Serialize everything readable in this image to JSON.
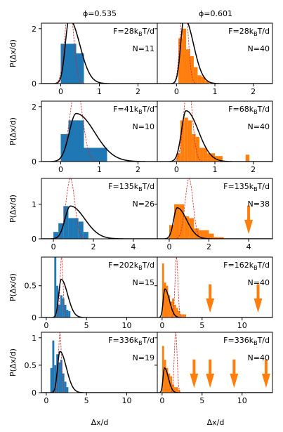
{
  "figure": {
    "column_titles": [
      "ϕ=0.535",
      "ϕ=0.601"
    ],
    "ylabel": "P(Δx/d)",
    "xlabel": "Δx/d"
  },
  "colors": {
    "left_hist": "#1f77b4",
    "right_hist": "#ff7f0e",
    "fit_curve": "#000000",
    "ref_curve": "#d62728",
    "arrow": "#ff7f0e"
  },
  "chart_data": [
    {
      "row": 0,
      "ylim": [
        0,
        2.2
      ],
      "yticks": [
        0,
        2
      ],
      "xlim": [
        -0.5,
        2.5
      ],
      "xticks": [
        0,
        1,
        2
      ],
      "left": {
        "force": "F=28k_BT/d",
        "n": "N=11",
        "bins": [
          [
            0,
            0.2,
            1.45
          ],
          [
            0.2,
            0.4,
            1.45
          ],
          [
            0.4,
            0.6,
            1.1
          ]
        ],
        "curve_peak": 0.22,
        "curve_width": 0.17,
        "curve_height": 2.35,
        "ref_peak": 0.22,
        "ref_width": 0.11,
        "ref_height": 3.0,
        "arrows": []
      },
      "right": {
        "force": "F=28k_BT/d",
        "n": "N=40",
        "bins": [
          [
            0.05,
            0.15,
            1.65
          ],
          [
            0.15,
            0.25,
            2.0
          ],
          [
            0.25,
            0.35,
            1.25
          ],
          [
            0.35,
            0.45,
            1.0
          ],
          [
            0.45,
            0.55,
            0.6
          ],
          [
            0.55,
            0.65,
            0.3
          ],
          [
            0.65,
            0.75,
            0.25
          ],
          [
            0.75,
            0.85,
            0.1
          ]
        ],
        "curve_peak": 0.2,
        "curve_width": 0.15,
        "curve_height": 2.4,
        "ref_peak": 0.2,
        "ref_width": 0.09,
        "ref_height": 3.5,
        "arrows": []
      }
    },
    {
      "row": 1,
      "ylim": [
        0,
        2.2
      ],
      "yticks": [
        0,
        2
      ],
      "xlim": [
        -0.5,
        2.5
      ],
      "xticks": [
        0,
        1,
        2
      ],
      "left": {
        "force": "F=41k_BT/d",
        "n": "N=10",
        "bins": [
          [
            0,
            0.2,
            1.0
          ],
          [
            0.2,
            0.4,
            1.5
          ],
          [
            0.4,
            0.6,
            1.5
          ],
          [
            0.6,
            0.8,
            0.5
          ],
          [
            0.8,
            1.2,
            0.5
          ]
        ],
        "curve_peak": 0.4,
        "curve_width": 0.3,
        "curve_height": 1.75,
        "ref_peak": 0.4,
        "ref_width": 0.16,
        "ref_height": 2.8,
        "arrows": []
      },
      "right": {
        "force": "F=68k_BT/d",
        "n": "N=40",
        "bins": [
          [
            0,
            0.1,
            0.3
          ],
          [
            0.1,
            0.2,
            1.5
          ],
          [
            0.2,
            0.3,
            1.6
          ],
          [
            0.3,
            0.4,
            1.5
          ],
          [
            0.4,
            0.5,
            1.0
          ],
          [
            0.5,
            0.6,
            0.9
          ],
          [
            0.6,
            0.7,
            0.5
          ],
          [
            0.7,
            0.8,
            0.5
          ],
          [
            0.8,
            0.9,
            0.3
          ],
          [
            0.9,
            1.0,
            0.3
          ],
          [
            1.0,
            1.1,
            0.2
          ],
          [
            1.1,
            1.2,
            0.2
          ],
          [
            1.8,
            1.9,
            0.25
          ]
        ],
        "curve_peak": 0.25,
        "curve_width": 0.2,
        "curve_height": 1.85,
        "ref_peak": 0.3,
        "ref_width": 0.11,
        "ref_height": 2.9,
        "arrows": []
      }
    },
    {
      "row": 2,
      "ylim": [
        0,
        1.75
      ],
      "yticks": [
        0,
        1
      ],
      "xlim": [
        -0.6,
        5.2
      ],
      "xticks": [
        0,
        2,
        4
      ],
      "left": {
        "force": "F=135k_BT/d",
        "n": "N=26",
        "bins": [
          [
            0,
            0.25,
            0.2
          ],
          [
            0.25,
            0.5,
            0.45
          ],
          [
            0.5,
            0.75,
            0.95
          ],
          [
            0.75,
            1.0,
            0.6
          ],
          [
            1.0,
            1.25,
            0.6
          ],
          [
            1.25,
            1.5,
            0.5
          ],
          [
            1.5,
            1.75,
            0.2
          ]
        ],
        "curve_peak": 0.85,
        "curve_width": 0.45,
        "curve_height": 0.95,
        "ref_peak": 0.85,
        "ref_width": 0.22,
        "ref_height": 1.75,
        "arrows": []
      },
      "right": {
        "force": "F=135k_BT/d",
        "n": "N=38",
        "bins": [
          [
            0,
            0.25,
            0.4
          ],
          [
            0.25,
            0.5,
            1.0
          ],
          [
            0.5,
            0.75,
            1.0
          ],
          [
            0.75,
            1.0,
            0.65
          ],
          [
            1.0,
            1.25,
            0.6
          ],
          [
            1.25,
            1.5,
            0.3
          ],
          [
            1.5,
            1.75,
            0.25
          ],
          [
            1.75,
            2.0,
            0.25
          ],
          [
            2.0,
            2.25,
            0.15
          ],
          [
            2.25,
            2.5,
            0.05
          ],
          [
            2.5,
            2.75,
            0.05
          ]
        ],
        "curve_peak": 0.4,
        "curve_width": 0.3,
        "curve_height": 0.9,
        "ref_peak": 1.0,
        "ref_width": 0.2,
        "ref_height": 1.75,
        "arrows": [
          4
        ]
      }
    },
    {
      "row": 3,
      "ylim": [
        0,
        0.95
      ],
      "yticks": [
        0,
        0.5
      ],
      "xlim": [
        -0.6,
        13.8
      ],
      "xticks": [
        0,
        5,
        10
      ],
      "left": {
        "force": "F=202k_BT/d",
        "n": "N=15",
        "bins": [
          [
            1.0,
            1.25,
            0.95
          ],
          [
            1.25,
            1.5,
            0.5
          ],
          [
            1.5,
            1.75,
            0.2
          ],
          [
            1.75,
            2.0,
            0.35
          ],
          [
            2.0,
            2.25,
            0.3
          ],
          [
            2.25,
            2.5,
            0.2
          ],
          [
            2.5,
            2.75,
            0.12
          ],
          [
            2.75,
            3.0,
            0.1
          ]
        ],
        "curve_peak": 1.85,
        "curve_width": 0.5,
        "curve_height": 0.6,
        "ref_peak": 1.9,
        "ref_width": 0.18,
        "ref_height": 0.95,
        "arrows": []
      },
      "right": {
        "force": "F=162k_BT/d",
        "n": "N=40",
        "bins": [
          [
            0,
            0.25,
            0.85
          ],
          [
            0.25,
            0.5,
            0.55
          ],
          [
            0.5,
            0.75,
            0.5
          ],
          [
            0.75,
            1.0,
            0.35
          ],
          [
            1.0,
            1.25,
            0.25
          ],
          [
            1.25,
            1.5,
            0.3
          ],
          [
            1.5,
            1.75,
            0.2
          ],
          [
            1.75,
            2.0,
            0.15
          ],
          [
            2.0,
            2.25,
            0.1
          ],
          [
            2.25,
            2.5,
            0.05
          ],
          [
            2.5,
            2.75,
            0.05
          ],
          [
            2.75,
            3.0,
            0.05
          ]
        ],
        "curve_peak": 0.35,
        "curve_width": 0.35,
        "curve_height": 0.45,
        "ref_peak": 1.8,
        "ref_width": 0.18,
        "ref_height": 0.95,
        "arrows": [
          6,
          12
        ]
      }
    },
    {
      "row": 4,
      "ylim": [
        0,
        1.1
      ],
      "yticks": [
        0,
        0.5,
        1
      ],
      "xlim": [
        -0.6,
        13.8
      ],
      "xticks": [
        0,
        5,
        10
      ],
      "left": {
        "force": "F=336k_BT/d",
        "n": "N=19",
        "bins": [
          [
            0.5,
            0.75,
            0.45
          ],
          [
            0.75,
            1.0,
            0.95
          ],
          [
            1.0,
            1.25,
            0.5
          ],
          [
            1.25,
            1.5,
            0.7
          ],
          [
            1.5,
            1.75,
            0.55
          ],
          [
            1.75,
            2.0,
            0.6
          ],
          [
            2.0,
            2.25,
            0.35
          ],
          [
            2.25,
            2.5,
            0.2
          ],
          [
            2.5,
            2.75,
            0.1
          ]
        ],
        "curve_peak": 1.7,
        "curve_width": 0.5,
        "curve_height": 0.75,
        "ref_peak": 1.7,
        "ref_width": 0.18,
        "ref_height": 1.1,
        "arrows": []
      },
      "right": {
        "force": "F=336k_BT/d",
        "n": "N=40",
        "bins": [
          [
            0,
            0.25,
            0.85
          ],
          [
            0.25,
            0.5,
            0.6
          ],
          [
            0.5,
            0.75,
            0.45
          ],
          [
            0.75,
            1.0,
            0.35
          ],
          [
            1.0,
            1.25,
            0.3
          ],
          [
            1.25,
            1.5,
            0.15
          ],
          [
            1.5,
            1.75,
            0.1
          ],
          [
            1.75,
            2.0,
            0.1
          ],
          [
            2.0,
            2.25,
            0.05
          ]
        ],
        "curve_peak": 0.3,
        "curve_width": 0.3,
        "curve_height": 0.45,
        "ref_peak": 1.7,
        "ref_width": 0.18,
        "ref_height": 1.1,
        "arrows": [
          4,
          6,
          9,
          13
        ]
      }
    }
  ]
}
